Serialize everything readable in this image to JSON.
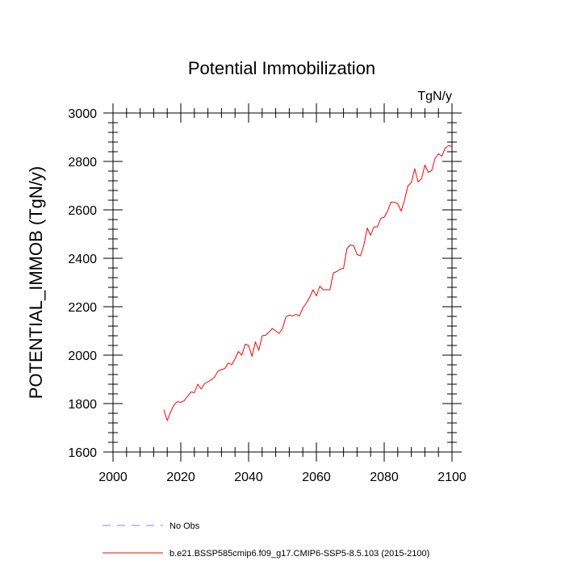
{
  "chart_data": {
    "type": "line",
    "title": "Potential Immobilization",
    "units_label": "TgN/y",
    "ylabel": "POTENTIAL_IMMOB  (TgN/y)",
    "xlabel": "",
    "xlim": [
      2000,
      2100
    ],
    "ylim": [
      1600,
      3000
    ],
    "x_ticks": [
      2000,
      2020,
      2040,
      2060,
      2080,
      2100
    ],
    "y_ticks": [
      1600,
      1800,
      2000,
      2200,
      2400,
      2600,
      2800,
      3000
    ],
    "grid": false,
    "legend": [
      {
        "name": "No Obs",
        "color": "#8080ff",
        "style": "dashed"
      },
      {
        "name": "b.e21.BSSP585cmip6.f09_g17.CMIP6-SSP5-8.5.103 (2015-2100)",
        "color": "#ff0000",
        "style": "solid"
      }
    ],
    "series": [
      {
        "name": "b.e21.BSSP585cmip6.f09_g17.CMIP6-SSP5-8.5.103 (2015-2100)",
        "color": "#ff0000",
        "x": [
          2015,
          2016,
          2017,
          2018,
          2019,
          2020,
          2021,
          2022,
          2023,
          2024,
          2025,
          2026,
          2027,
          2028,
          2029,
          2030,
          2031,
          2032,
          2033,
          2034,
          2035,
          2036,
          2037,
          2038,
          2039,
          2040,
          2041,
          2042,
          2043,
          2044,
          2045,
          2046,
          2047,
          2048,
          2049,
          2050,
          2051,
          2052,
          2053,
          2054,
          2055,
          2056,
          2057,
          2058,
          2059,
          2060,
          2061,
          2062,
          2063,
          2064,
          2065,
          2066,
          2067,
          2068,
          2069,
          2070,
          2071,
          2072,
          2073,
          2074,
          2075,
          2076,
          2077,
          2078,
          2079,
          2080,
          2081,
          2082,
          2083,
          2084,
          2085,
          2086,
          2087,
          2088,
          2089,
          2090,
          2091,
          2092,
          2093,
          2094,
          2095,
          2096,
          2097,
          2098,
          2099,
          2100
        ],
        "y": [
          1775,
          1730,
          1765,
          1795,
          1808,
          1805,
          1812,
          1830,
          1848,
          1845,
          1880,
          1860,
          1882,
          1890,
          1898,
          1910,
          1935,
          1940,
          1945,
          1968,
          1960,
          1985,
          2015,
          2000,
          2045,
          2040,
          1995,
          2055,
          2020,
          2080,
          2082,
          2095,
          2110,
          2100,
          2090,
          2110,
          2158,
          2165,
          2162,
          2168,
          2162,
          2195,
          2215,
          2238,
          2270,
          2245,
          2285,
          2270,
          2270,
          2270,
          2340,
          2345,
          2355,
          2358,
          2440,
          2455,
          2452,
          2415,
          2410,
          2455,
          2525,
          2495,
          2530,
          2530,
          2565,
          2570,
          2595,
          2632,
          2632,
          2625,
          2595,
          2640,
          2700,
          2712,
          2770,
          2715,
          2728,
          2785,
          2755,
          2762,
          2812,
          2832,
          2822,
          2855,
          2865,
          2862
        ]
      }
    ]
  }
}
